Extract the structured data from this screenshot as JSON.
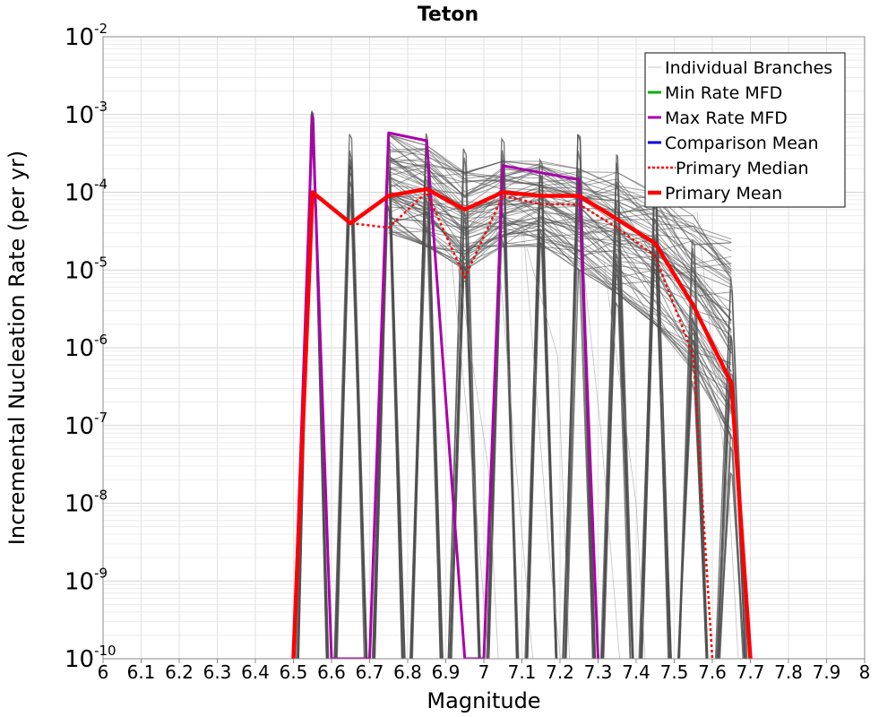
{
  "chart_data": {
    "type": "line",
    "title": "Teton",
    "xlabel": "Magnitude",
    "ylabel": "Incremental Nucleation Rate (per yr)",
    "xlim": [
      6,
      8
    ],
    "ylim_log10": [
      -10,
      -2
    ],
    "y_scale": "log",
    "x_ticks": [
      "6",
      "6.1",
      "6.2",
      "6.3",
      "6.4",
      "6.5",
      "6.6",
      "6.7",
      "6.8",
      "6.9",
      "7",
      "7.1",
      "7.2",
      "7.3",
      "7.4",
      "7.5",
      "7.6",
      "7.7",
      "7.8",
      "7.9",
      "8"
    ],
    "y_ticks": [
      {
        "base": "10",
        "exp": "-10"
      },
      {
        "base": "10",
        "exp": "-9"
      },
      {
        "base": "10",
        "exp": "-8"
      },
      {
        "base": "10",
        "exp": "-7"
      },
      {
        "base": "10",
        "exp": "-6"
      },
      {
        "base": "10",
        "exp": "-5"
      },
      {
        "base": "10",
        "exp": "-4"
      },
      {
        "base": "10",
        "exp": "-3"
      },
      {
        "base": "10",
        "exp": "-2"
      }
    ],
    "grid": true,
    "legend_position": "top-right",
    "legend": [
      {
        "label": "Individual Branches",
        "color": "#c8c8c8",
        "style": "thin"
      },
      {
        "label": "Min Rate MFD",
        "color": "#00b000",
        "style": "solid"
      },
      {
        "label": "Max Rate MFD",
        "color": "#aa00aa",
        "style": "solid"
      },
      {
        "label": "Comparison Mean",
        "color": "#0000dd",
        "style": "solid"
      },
      {
        "label": " Primary Median",
        "color": "#ff0000",
        "style": "dotted"
      },
      {
        "label": "Primary Mean",
        "color": "#ff0000",
        "style": "thick"
      }
    ],
    "series": [
      {
        "name": "Primary Mean",
        "color": "#ff0000",
        "style": "thick",
        "points": [
          [
            6.5,
            1e-10
          ],
          [
            6.55,
            0.0001
          ],
          [
            6.65,
            4e-05
          ],
          [
            6.75,
            9e-05
          ],
          [
            6.85,
            0.00011
          ],
          [
            6.95,
            6e-05
          ],
          [
            7.05,
            0.0001
          ],
          [
            7.15,
            9e-05
          ],
          [
            7.25,
            9e-05
          ],
          [
            7.35,
            4.5e-05
          ],
          [
            7.45,
            2.2e-05
          ],
          [
            7.55,
            3.5e-06
          ],
          [
            7.65,
            3.5e-07
          ],
          [
            7.7,
            1e-10
          ]
        ]
      },
      {
        "name": "Primary Median",
        "color": "#ff0000",
        "style": "dotted",
        "points": [
          [
            6.5,
            1e-10
          ],
          [
            6.55,
            0.0001
          ],
          [
            6.65,
            4e-05
          ],
          [
            6.75,
            3.5e-05
          ],
          [
            6.85,
            0.0001
          ],
          [
            6.95,
            8e-06
          ],
          [
            7.05,
            9e-05
          ],
          [
            7.15,
            7e-05
          ],
          [
            7.25,
            7e-05
          ],
          [
            7.35,
            3.5e-05
          ],
          [
            7.45,
            1.5e-05
          ],
          [
            7.55,
            8e-07
          ],
          [
            7.6,
            1e-10
          ]
        ]
      },
      {
        "name": "Max Rate MFD",
        "color": "#aa00aa",
        "style": "solid",
        "points": [
          [
            6.5,
            1e-10
          ],
          [
            6.55,
            0.00095
          ],
          [
            6.6,
            1e-10
          ],
          [
            6.7,
            1e-10
          ],
          [
            6.75,
            0.00058
          ],
          [
            6.85,
            0.00046
          ],
          [
            6.95,
            1e-10
          ],
          [
            7.0,
            1e-10
          ],
          [
            7.05,
            0.00022
          ],
          [
            7.25,
            0.000145
          ],
          [
            7.3,
            1e-10
          ]
        ]
      }
    ],
    "branch_spikes": [
      {
        "x": 6.55,
        "max": 0.0012,
        "min": 0.0008
      },
      {
        "x": 6.65,
        "max": 0.0009,
        "min": 4e-05
      },
      {
        "x": 6.75,
        "max": 0.0009,
        "min": 3e-05
      },
      {
        "x": 6.85,
        "max": 0.0006,
        "min": 3e-05
      },
      {
        "x": 6.95,
        "max": 0.0005,
        "min": 3e-06
      },
      {
        "x": 7.05,
        "max": 0.0005,
        "min": 2e-05
      },
      {
        "x": 7.15,
        "max": 0.00028,
        "min": 2e-05
      },
      {
        "x": 7.25,
        "max": 0.0006,
        "min": 1e-05
      },
      {
        "x": 7.35,
        "max": 0.0007,
        "min": 3e-06
      },
      {
        "x": 7.45,
        "max": 0.0003,
        "min": 1.5e-06
      },
      {
        "x": 7.55,
        "max": 7e-05,
        "min": 3e-07
      },
      {
        "x": 7.65,
        "max": 2.5e-05,
        "min": 2e-08
      }
    ],
    "branch_band": {
      "upper": [
        [
          6.75,
          0.00055
        ],
        [
          6.85,
          0.0004
        ],
        [
          6.95,
          0.00018
        ],
        [
          7.05,
          0.00025
        ],
        [
          7.15,
          0.00025
        ],
        [
          7.25,
          0.0002
        ],
        [
          7.35,
          0.00018
        ],
        [
          7.45,
          0.0001
        ],
        [
          7.55,
          5e-05
        ],
        [
          7.65,
          2.5e-05
        ]
      ],
      "lower": [
        [
          6.75,
          3e-05
        ],
        [
          6.85,
          2e-05
        ],
        [
          6.95,
          1e-05
        ],
        [
          7.05,
          2e-05
        ],
        [
          7.15,
          2e-05
        ],
        [
          7.25,
          1e-05
        ],
        [
          7.35,
          5e-06
        ],
        [
          7.45,
          2e-06
        ],
        [
          7.55,
          5e-07
        ],
        [
          7.65,
          5e-08
        ]
      ]
    }
  }
}
